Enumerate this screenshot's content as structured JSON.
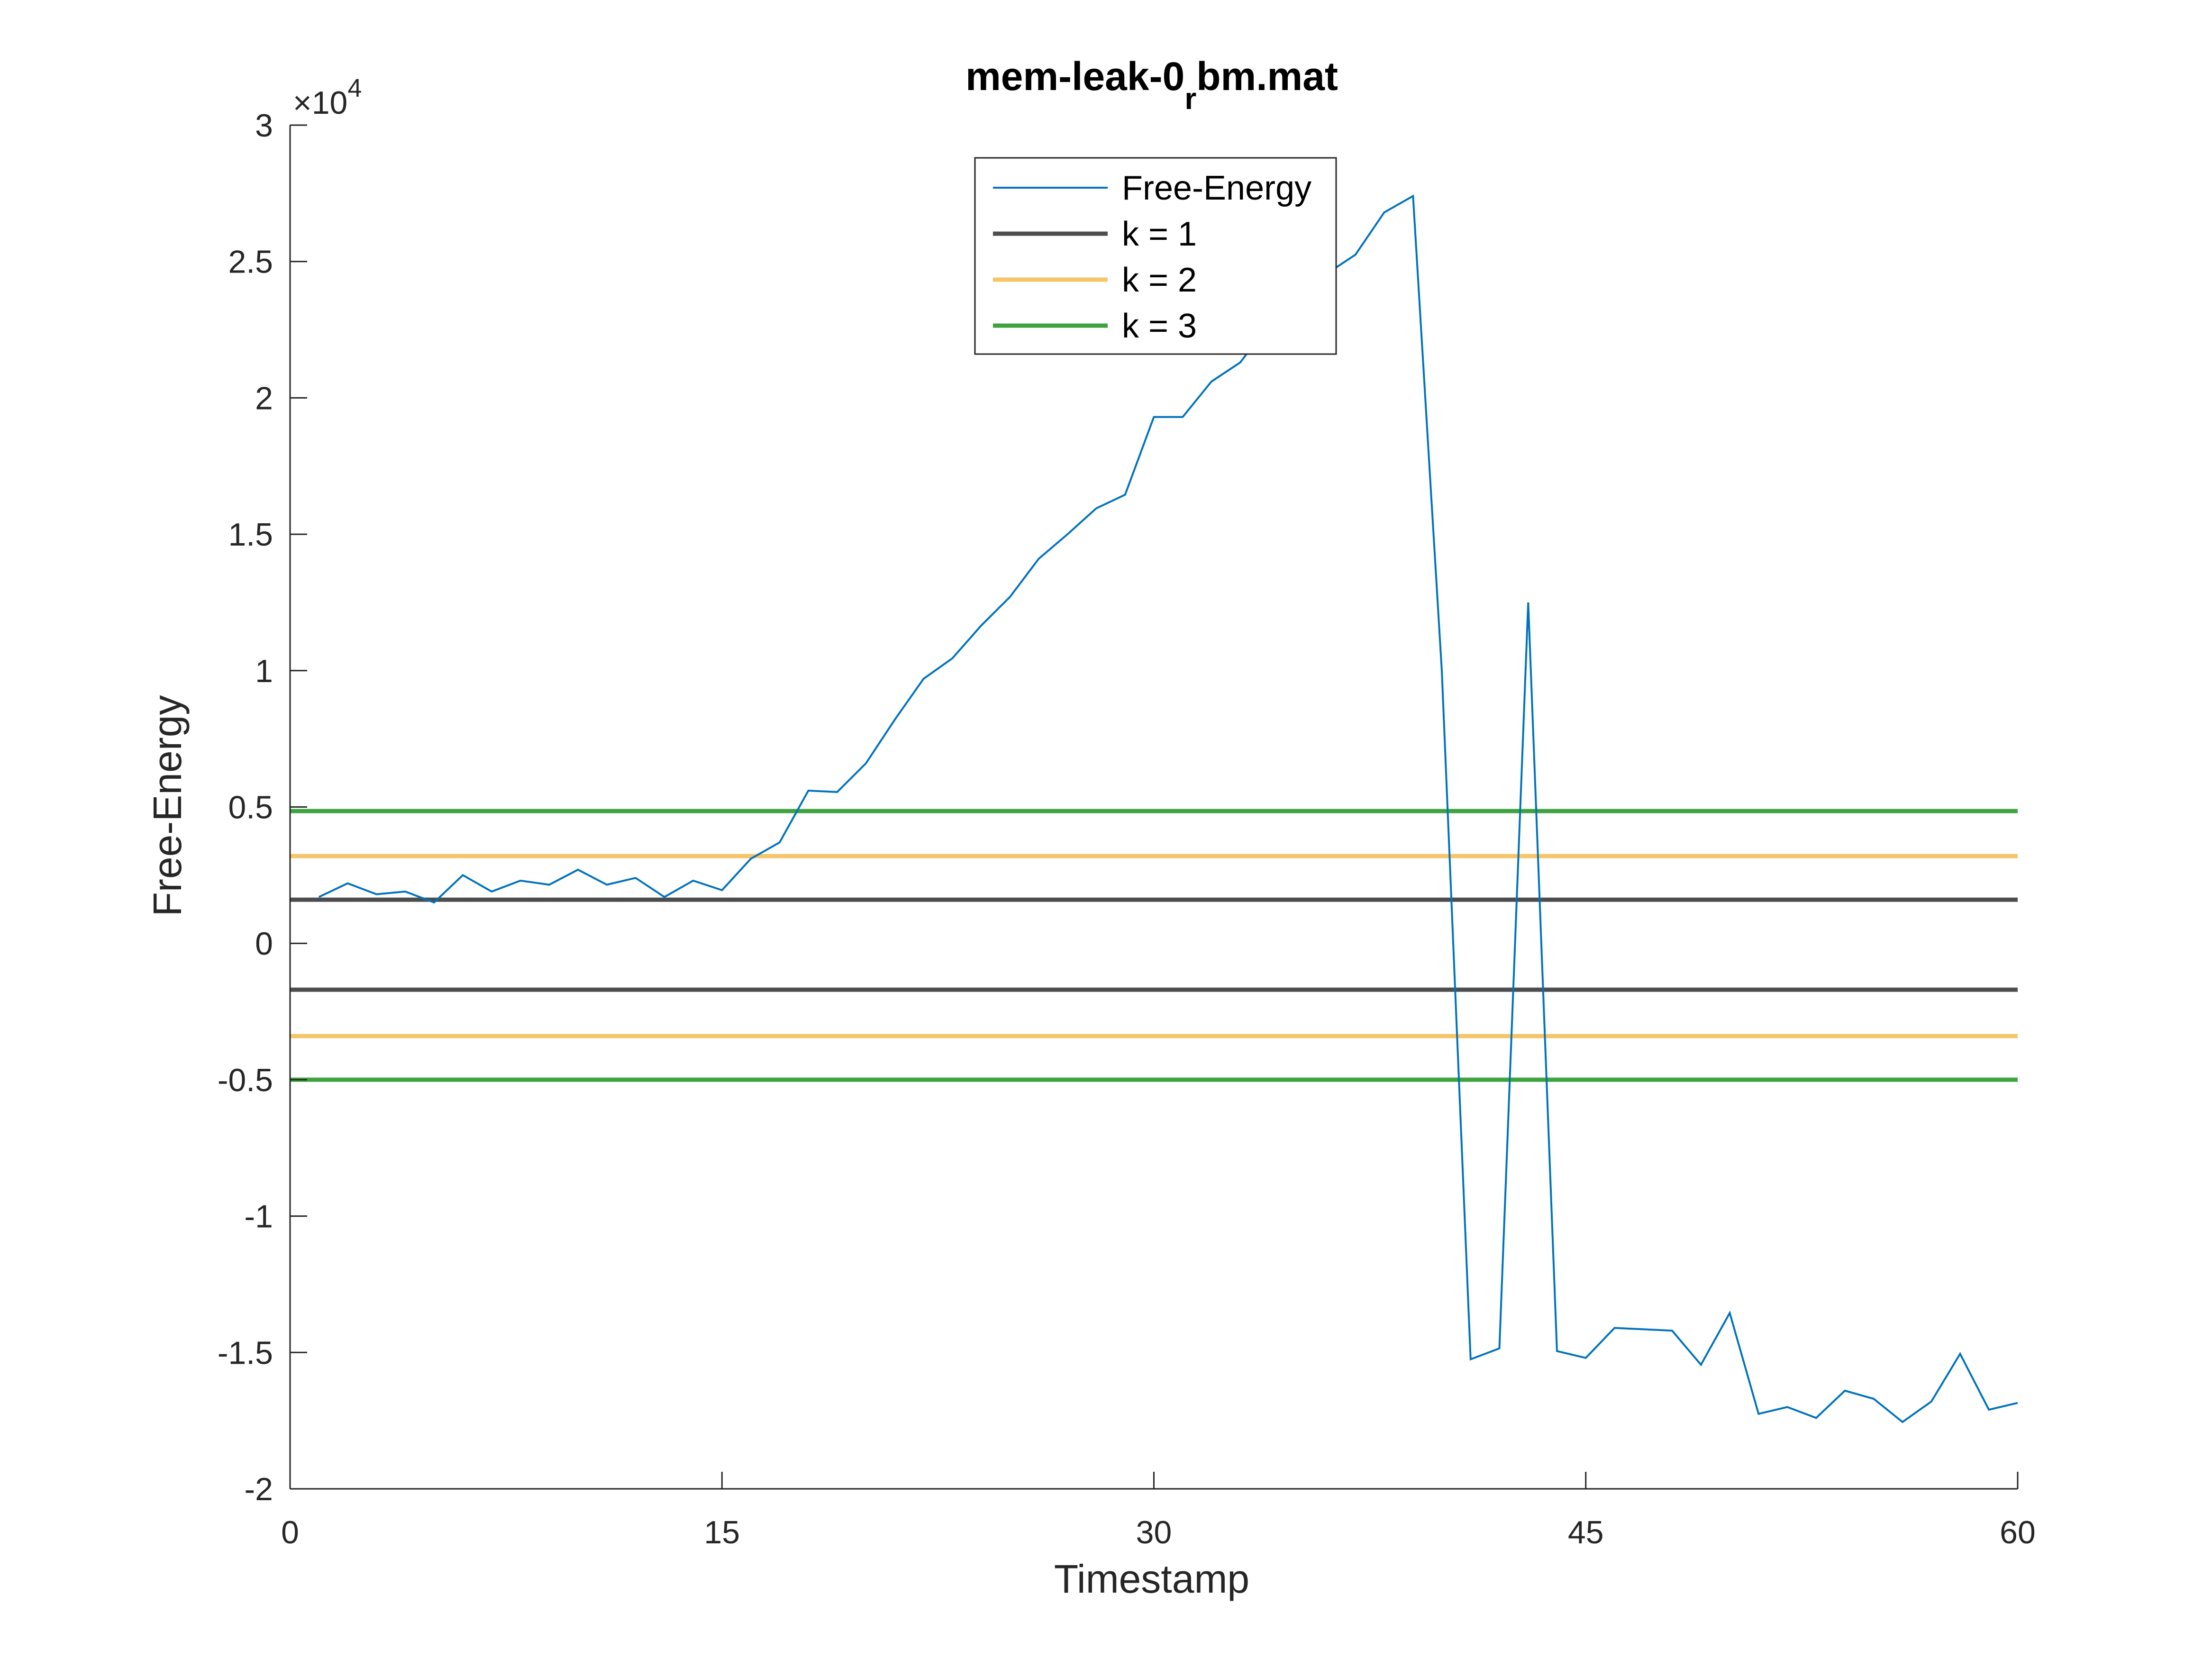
{
  "chart_data": {
    "type": "line",
    "title": "mem-leak-0",
    "title_subscript": "r",
    "title_suffix": "bm.mat",
    "xlabel": "Timestamp",
    "ylabel": "Free-Energy",
    "xlim": [
      0,
      60
    ],
    "ylim": [
      -20000,
      30000
    ],
    "xticks": [
      0,
      15,
      30,
      45,
      60
    ],
    "xtick_labels": [
      "0",
      "15",
      "30",
      "45",
      "60"
    ],
    "yticks": [
      -20000,
      -15000,
      -10000,
      -5000,
      0,
      5000,
      10000,
      15000,
      20000,
      25000,
      30000
    ],
    "ytick_labels": [
      "-2",
      "-1.5",
      "-1",
      "-0.5",
      "0",
      "0.5",
      "1",
      "1.5",
      "2",
      "2.5",
      "3"
    ],
    "y_exponent": {
      "base": "×10",
      "power": "4"
    },
    "grid": false,
    "legend_position": "top-center",
    "series": [
      {
        "name": "Free-Energy",
        "color": "#0072BD",
        "x": [
          1,
          2,
          3,
          4,
          5,
          6,
          7,
          8,
          9,
          10,
          11,
          12,
          13,
          14,
          15,
          16,
          17,
          18,
          19,
          20,
          21,
          22,
          23,
          24,
          25,
          26,
          27,
          28,
          29,
          30,
          31,
          32,
          33,
          34,
          35,
          36,
          37,
          38,
          39,
          40,
          41,
          42,
          43,
          44,
          45,
          46,
          47,
          48,
          49,
          50,
          51,
          52,
          53,
          54,
          55,
          56,
          57,
          58,
          59,
          60
        ],
        "values": [
          1700,
          2200,
          1800,
          1900,
          1500,
          2500,
          1900,
          2300,
          2150,
          2700,
          2150,
          2400,
          1700,
          2300,
          1950,
          3100,
          3700,
          5600,
          5550,
          6600,
          8200,
          9700,
          10450,
          11650,
          12700,
          14100,
          15000,
          15950,
          16450,
          19300,
          19300,
          20600,
          21300,
          22700,
          23600,
          24550,
          25250,
          26800,
          27400,
          10000,
          -15250,
          -14850,
          12500,
          -14950,
          -15200,
          -14100,
          -14150,
          -14200,
          -15450,
          -13550,
          -17250,
          -17000,
          -17400,
          -16400,
          -16700,
          -17550,
          -16800,
          -15050,
          -17100,
          -16850
        ]
      },
      {
        "name": "k = 1",
        "color": "#4D4D4D",
        "bounds": [
          1600,
          -1700
        ]
      },
      {
        "name": "k = 2",
        "color": "#F5C56A",
        "bounds": [
          3200,
          -3400
        ]
      },
      {
        "name": "k = 3",
        "color": "#3EA33E",
        "bounds": [
          4850,
          -5000
        ]
      }
    ]
  }
}
